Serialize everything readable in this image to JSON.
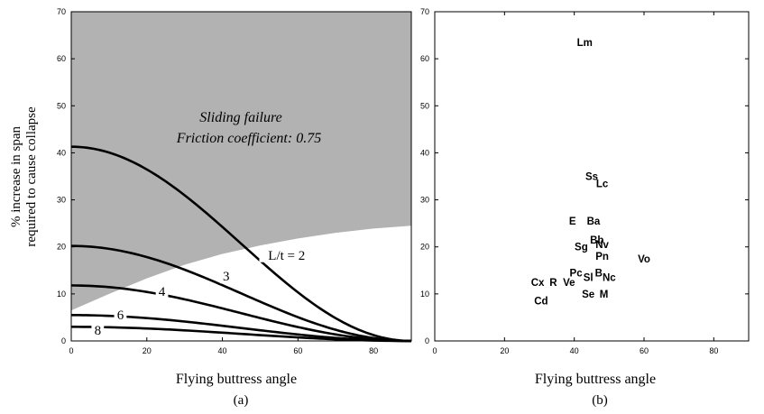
{
  "chart_data": [
    {
      "type": "line",
      "panel_label": "(a)",
      "xlabel": "Flying buttress angle",
      "ylabel_line1": "% increase in span",
      "ylabel_line2": "required to cause collapse",
      "xlim": [
        0,
        90
      ],
      "ylim": [
        0,
        70
      ],
      "x_ticks": [
        0,
        20,
        40,
        60,
        80
      ],
      "y_ticks": [
        0,
        10,
        20,
        30,
        40,
        50,
        60,
        70
      ],
      "shaded_region": {
        "title_line1": "Sliding failure",
        "title_line2": "Friction coefficient: 0.75",
        "color": "#b2b2b2",
        "boundary": [
          {
            "x": 0,
            "y": 6.5
          },
          {
            "x": 10,
            "y": 10
          },
          {
            "x": 20,
            "y": 13.3
          },
          {
            "x": 30,
            "y": 16.2
          },
          {
            "x": 40,
            "y": 18.5
          },
          {
            "x": 50,
            "y": 20.3
          },
          {
            "x": 60,
            "y": 21.8
          },
          {
            "x": 70,
            "y": 23
          },
          {
            "x": 80,
            "y": 23.9
          },
          {
            "x": 90,
            "y": 24.5
          }
        ]
      },
      "series": [
        {
          "label": "L/t = 2",
          "y0": 41.3,
          "label_x": 57,
          "label_y": 17.5
        },
        {
          "label": "3",
          "y0": 20.2,
          "label_x": 41,
          "label_y": 13
        },
        {
          "label": "4",
          "y0": 11.8,
          "label_x": 24,
          "label_y": 9.8
        },
        {
          "label": "6",
          "y0": 5.5,
          "label_x": 13,
          "label_y": 4.8
        },
        {
          "label": "8",
          "y0": 3.0,
          "label_x": 7,
          "label_y": 1.5
        }
      ]
    },
    {
      "type": "scatter",
      "panel_label": "(b)",
      "xlabel": "Flying buttress angle",
      "xlim": [
        0,
        90
      ],
      "ylim": [
        0,
        70
      ],
      "x_ticks": [
        0,
        20,
        40,
        60,
        80
      ],
      "y_ticks": [
        0,
        10,
        20,
        30,
        40,
        50,
        60,
        70
      ],
      "points": [
        {
          "label": "Lm",
          "x": 43,
          "y": 63.5
        },
        {
          "label": "Ss",
          "x": 45,
          "y": 35
        },
        {
          "label": "Lc",
          "x": 48,
          "y": 33.5
        },
        {
          "label": "E",
          "x": 39.5,
          "y": 25.5
        },
        {
          "label": "Ba",
          "x": 45.5,
          "y": 25.5
        },
        {
          "label": "Bb",
          "x": 46.5,
          "y": 21.5
        },
        {
          "label": "Sg",
          "x": 42,
          "y": 20
        },
        {
          "label": "Nv",
          "x": 48,
          "y": 20.5
        },
        {
          "label": "Pn",
          "x": 48,
          "y": 18
        },
        {
          "label": "Vo",
          "x": 60,
          "y": 17.5
        },
        {
          "label": "Pc",
          "x": 40.5,
          "y": 14.5
        },
        {
          "label": "Sl",
          "x": 44,
          "y": 13.5
        },
        {
          "label": "B",
          "x": 47,
          "y": 14.5
        },
        {
          "label": "Nc",
          "x": 50,
          "y": 13.5
        },
        {
          "label": "Cx",
          "x": 29.5,
          "y": 12.5
        },
        {
          "label": "R",
          "x": 34,
          "y": 12.5
        },
        {
          "label": "Ve",
          "x": 38.5,
          "y": 12.5
        },
        {
          "label": "Se",
          "x": 44,
          "y": 10
        },
        {
          "label": "M",
          "x": 48.5,
          "y": 10
        },
        {
          "label": "Cd",
          "x": 30.5,
          "y": 8.5
        }
      ]
    }
  ]
}
